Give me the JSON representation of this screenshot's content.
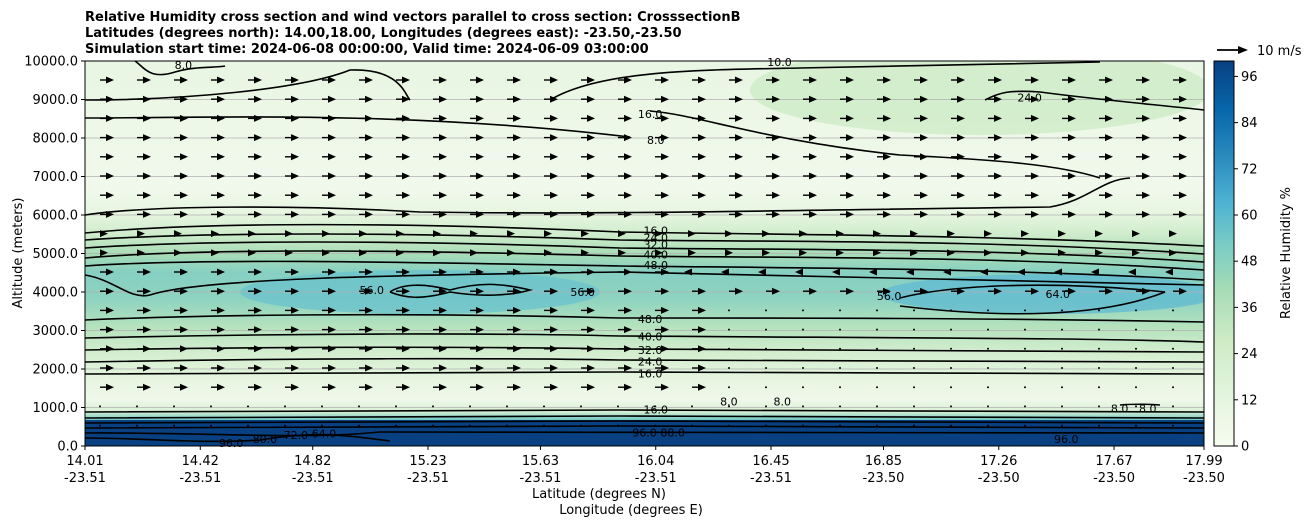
{
  "chart_data": {
    "type": "contour",
    "title_lines": [
      "Relative Humidity cross section and wind vectors parallel to cross section: CrosssectionB",
      "Latitudes (degrees north): 14.00,18.00, Longitudes (degrees east): -23.50,-23.50",
      "Simulation start time: 2024-06-08 00:00:00, Valid time: 2024-06-09 03:00:00"
    ],
    "ylabel": "Altitude (meters)",
    "xlabel_lat": "Latitude (degrees N)",
    "xlabel_lon": "Longitude (degrees E)",
    "ylim": [
      0,
      10000
    ],
    "y_ticks": [
      "0.0",
      "1000.0",
      "2000.0",
      "3000.0",
      "4000.0",
      "5000.0",
      "6000.0",
      "7000.0",
      "8000.0",
      "9000.0",
      "10000.0"
    ],
    "x_ticks": [
      {
        "lat": "14.01",
        "lon": "-23.51"
      },
      {
        "lat": "14.42",
        "lon": "-23.51"
      },
      {
        "lat": "14.82",
        "lon": "-23.51"
      },
      {
        "lat": "15.23",
        "lon": "-23.51"
      },
      {
        "lat": "15.63",
        "lon": "-23.51"
      },
      {
        "lat": "16.04",
        "lon": "-23.51"
      },
      {
        "lat": "16.45",
        "lon": "-23.51"
      },
      {
        "lat": "16.85",
        "lon": "-23.50"
      },
      {
        "lat": "17.26",
        "lon": "-23.50"
      },
      {
        "lat": "17.67",
        "lon": "-23.50"
      },
      {
        "lat": "17.99",
        "lon": "-23.50"
      }
    ],
    "grid": "horizontal",
    "colorbar": {
      "label": "Relative Humidity %",
      "ticks": [
        "0",
        "12",
        "24",
        "36",
        "48",
        "60",
        "72",
        "84",
        "96"
      ],
      "range": [
        0,
        100
      ],
      "colormap": [
        "#f7fcf0",
        "#e0f3db",
        "#ccebc5",
        "#a8ddb5",
        "#7bccc4",
        "#4eb3d3",
        "#2b8cbe",
        "#0868ac",
        "#084081"
      ]
    },
    "quiver_key": "10 m/s",
    "contour_labels": [
      {
        "text": "8.0",
        "lat": 14.36,
        "z": 9900
      },
      {
        "text": "10.0",
        "lat": 16.48,
        "z": 9980
      },
      {
        "text": "16.0",
        "lat": 16.02,
        "z": 8620
      },
      {
        "text": "8.0",
        "lat": 16.04,
        "z": 7950
      },
      {
        "text": "24.0",
        "lat": 17.37,
        "z": 9050
      },
      {
        "text": "16.0",
        "lat": 16.04,
        "z": 5600
      },
      {
        "text": "24.0",
        "lat": 16.04,
        "z": 5420
      },
      {
        "text": "32.0",
        "lat": 16.04,
        "z": 5240
      },
      {
        "text": "40.0",
        "lat": 16.04,
        "z": 4980
      },
      {
        "text": "48.0",
        "lat": 16.04,
        "z": 4700
      },
      {
        "text": "56.0",
        "lat": 15.03,
        "z": 4050
      },
      {
        "text": "56.0",
        "lat": 15.78,
        "z": 4000
      },
      {
        "text": "56.0",
        "lat": 16.87,
        "z": 3900
      },
      {
        "text": "64.0",
        "lat": 17.47,
        "z": 3950
      },
      {
        "text": "48.0",
        "lat": 16.02,
        "z": 3300
      },
      {
        "text": "40.0",
        "lat": 16.02,
        "z": 2850
      },
      {
        "text": "32.0",
        "lat": 16.02,
        "z": 2500
      },
      {
        "text": "24.0",
        "lat": 16.02,
        "z": 2200
      },
      {
        "text": "16.0",
        "lat": 16.02,
        "z": 1880
      },
      {
        "text": "8.0",
        "lat": 16.3,
        "z": 1150
      },
      {
        "text": "8.0",
        "lat": 16.49,
        "z": 1150
      },
      {
        "text": "8.0",
        "lat": 17.69,
        "z": 970
      },
      {
        "text": "8.0",
        "lat": 17.79,
        "z": 970
      },
      {
        "text": "16.0",
        "lat": 16.04,
        "z": 950
      },
      {
        "text": "96.0",
        "lat": 16.0,
        "z": 350
      },
      {
        "text": "88.0",
        "lat": 16.1,
        "z": 350
      },
      {
        "text": "96.0",
        "lat": 14.53,
        "z": 80
      },
      {
        "text": "80.0",
        "lat": 14.65,
        "z": 180
      },
      {
        "text": "72.0",
        "lat": 14.76,
        "z": 280
      },
      {
        "text": "64.0",
        "lat": 14.86,
        "z": 330
      },
      {
        "text": "96.0",
        "lat": 17.5,
        "z": 180
      }
    ]
  }
}
